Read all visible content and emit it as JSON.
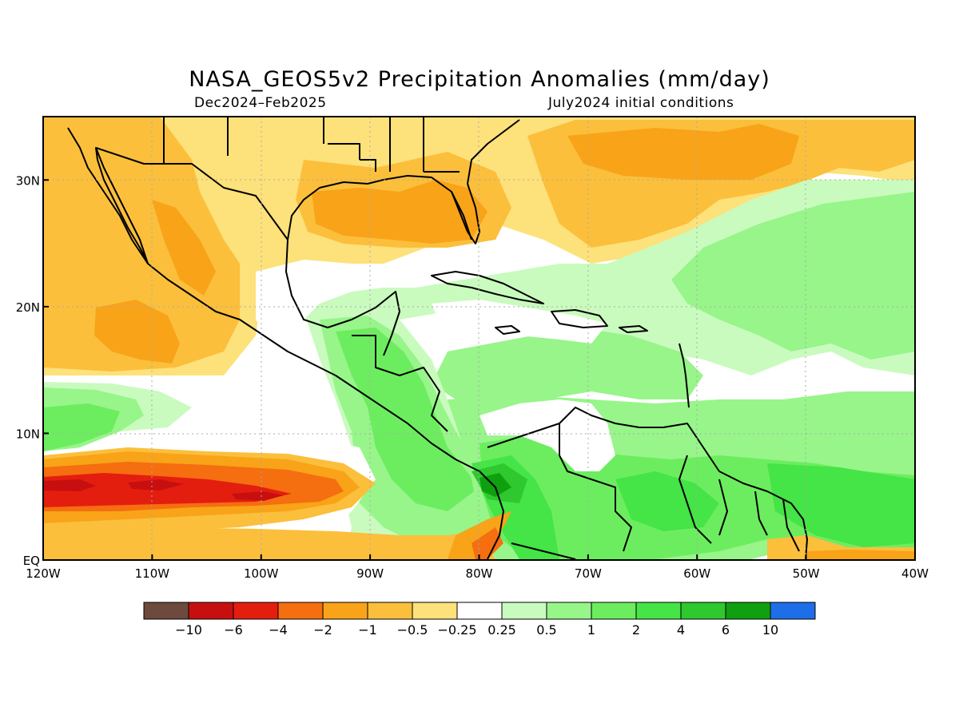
{
  "title": "NASA_GEOS5v2 Precipitation Anomalies (mm/day)",
  "subtitle_left": "Dec2024–Feb2025",
  "subtitle_right": "July2024 initial conditions",
  "map": {
    "lon_range": [
      -120,
      -40
    ],
    "lat_range": [
      0,
      35
    ],
    "x_ticks": [
      {
        "lon": -120,
        "label": "120W"
      },
      {
        "lon": -110,
        "label": "110W"
      },
      {
        "lon": -100,
        "label": "100W"
      },
      {
        "lon": -90,
        "label": "90W"
      },
      {
        "lon": -80,
        "label": "80W"
      },
      {
        "lon": -70,
        "label": "70W"
      },
      {
        "lon": -60,
        "label": "60W"
      },
      {
        "lon": -50,
        "label": "50W"
      },
      {
        "lon": -40,
        "label": "40W"
      }
    ],
    "y_ticks": [
      {
        "lat": 0,
        "label": "EQ"
      },
      {
        "lat": 10,
        "label": "10N"
      },
      {
        "lat": 20,
        "label": "20N"
      },
      {
        "lat": 30,
        "label": "30N"
      }
    ],
    "grid": true
  },
  "colorbar": {
    "colors": [
      "#6d4a3d",
      "#c80f0f",
      "#e41e0f",
      "#f56e10",
      "#f8a318",
      "#fbbf3c",
      "#fde17a",
      "#ffffff",
      "#c9fbbe",
      "#97f58a",
      "#6ced5f",
      "#45e447",
      "#2fc82f",
      "#0fa00f",
      "#1d6ee8"
    ],
    "labels": [
      "−10",
      "−6",
      "−4",
      "−2",
      "−1",
      "−0.5",
      "−0.25",
      "0.25",
      "0.5",
      "1",
      "2",
      "4",
      "6",
      "10"
    ]
  },
  "palette": {
    "ocean_white": "#ffffff",
    "neg_light": "#fde17a",
    "neg_med": "#fbbf3c",
    "neg_strong": "#f8a318",
    "neg_orange": "#f56e10",
    "neg_red": "#e41e0f",
    "neg_dark": "#c80f0f",
    "pos_light": "#c9fbbe",
    "pos_med": "#97f58a",
    "pos_strong": "#6ced5f",
    "pos_brighter": "#45e447",
    "pos_dark": "#2fc82f",
    "pos_darker": "#0fa00f"
  }
}
